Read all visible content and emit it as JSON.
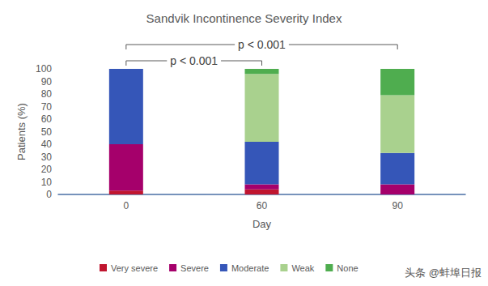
{
  "chart_data": {
    "type": "bar",
    "stacked": true,
    "title": "Sandvik Incontinence Severity Index",
    "x_label": "Day",
    "y_label": "Patients (%)",
    "categories": [
      "0",
      "60",
      "90"
    ],
    "series": [
      {
        "name": "Very severe",
        "color": "#c0152f",
        "values": [
          3,
          4,
          0
        ]
      },
      {
        "name": "Severe",
        "color": "#a5006b",
        "values": [
          37,
          4,
          8
        ]
      },
      {
        "name": "Moderate",
        "color": "#3556b8",
        "values": [
          60,
          34,
          25
        ]
      },
      {
        "name": "Weak",
        "color": "#a9d18e",
        "values": [
          0,
          54,
          46
        ]
      },
      {
        "name": "None",
        "color": "#4fad4f",
        "values": [
          0,
          4,
          21
        ]
      }
    ],
    "ylim": [
      0,
      100
    ],
    "yticks": [
      0,
      10,
      20,
      30,
      40,
      50,
      60,
      70,
      80,
      90,
      100
    ],
    "grid": false,
    "legend": "bottom",
    "annotations": [
      {
        "text": "p < 0.001",
        "from": "0",
        "to": "60"
      },
      {
        "text": "p < 0.001",
        "from": "0",
        "to": "90"
      }
    ],
    "watermark": "头条 @蚌埠日报"
  }
}
